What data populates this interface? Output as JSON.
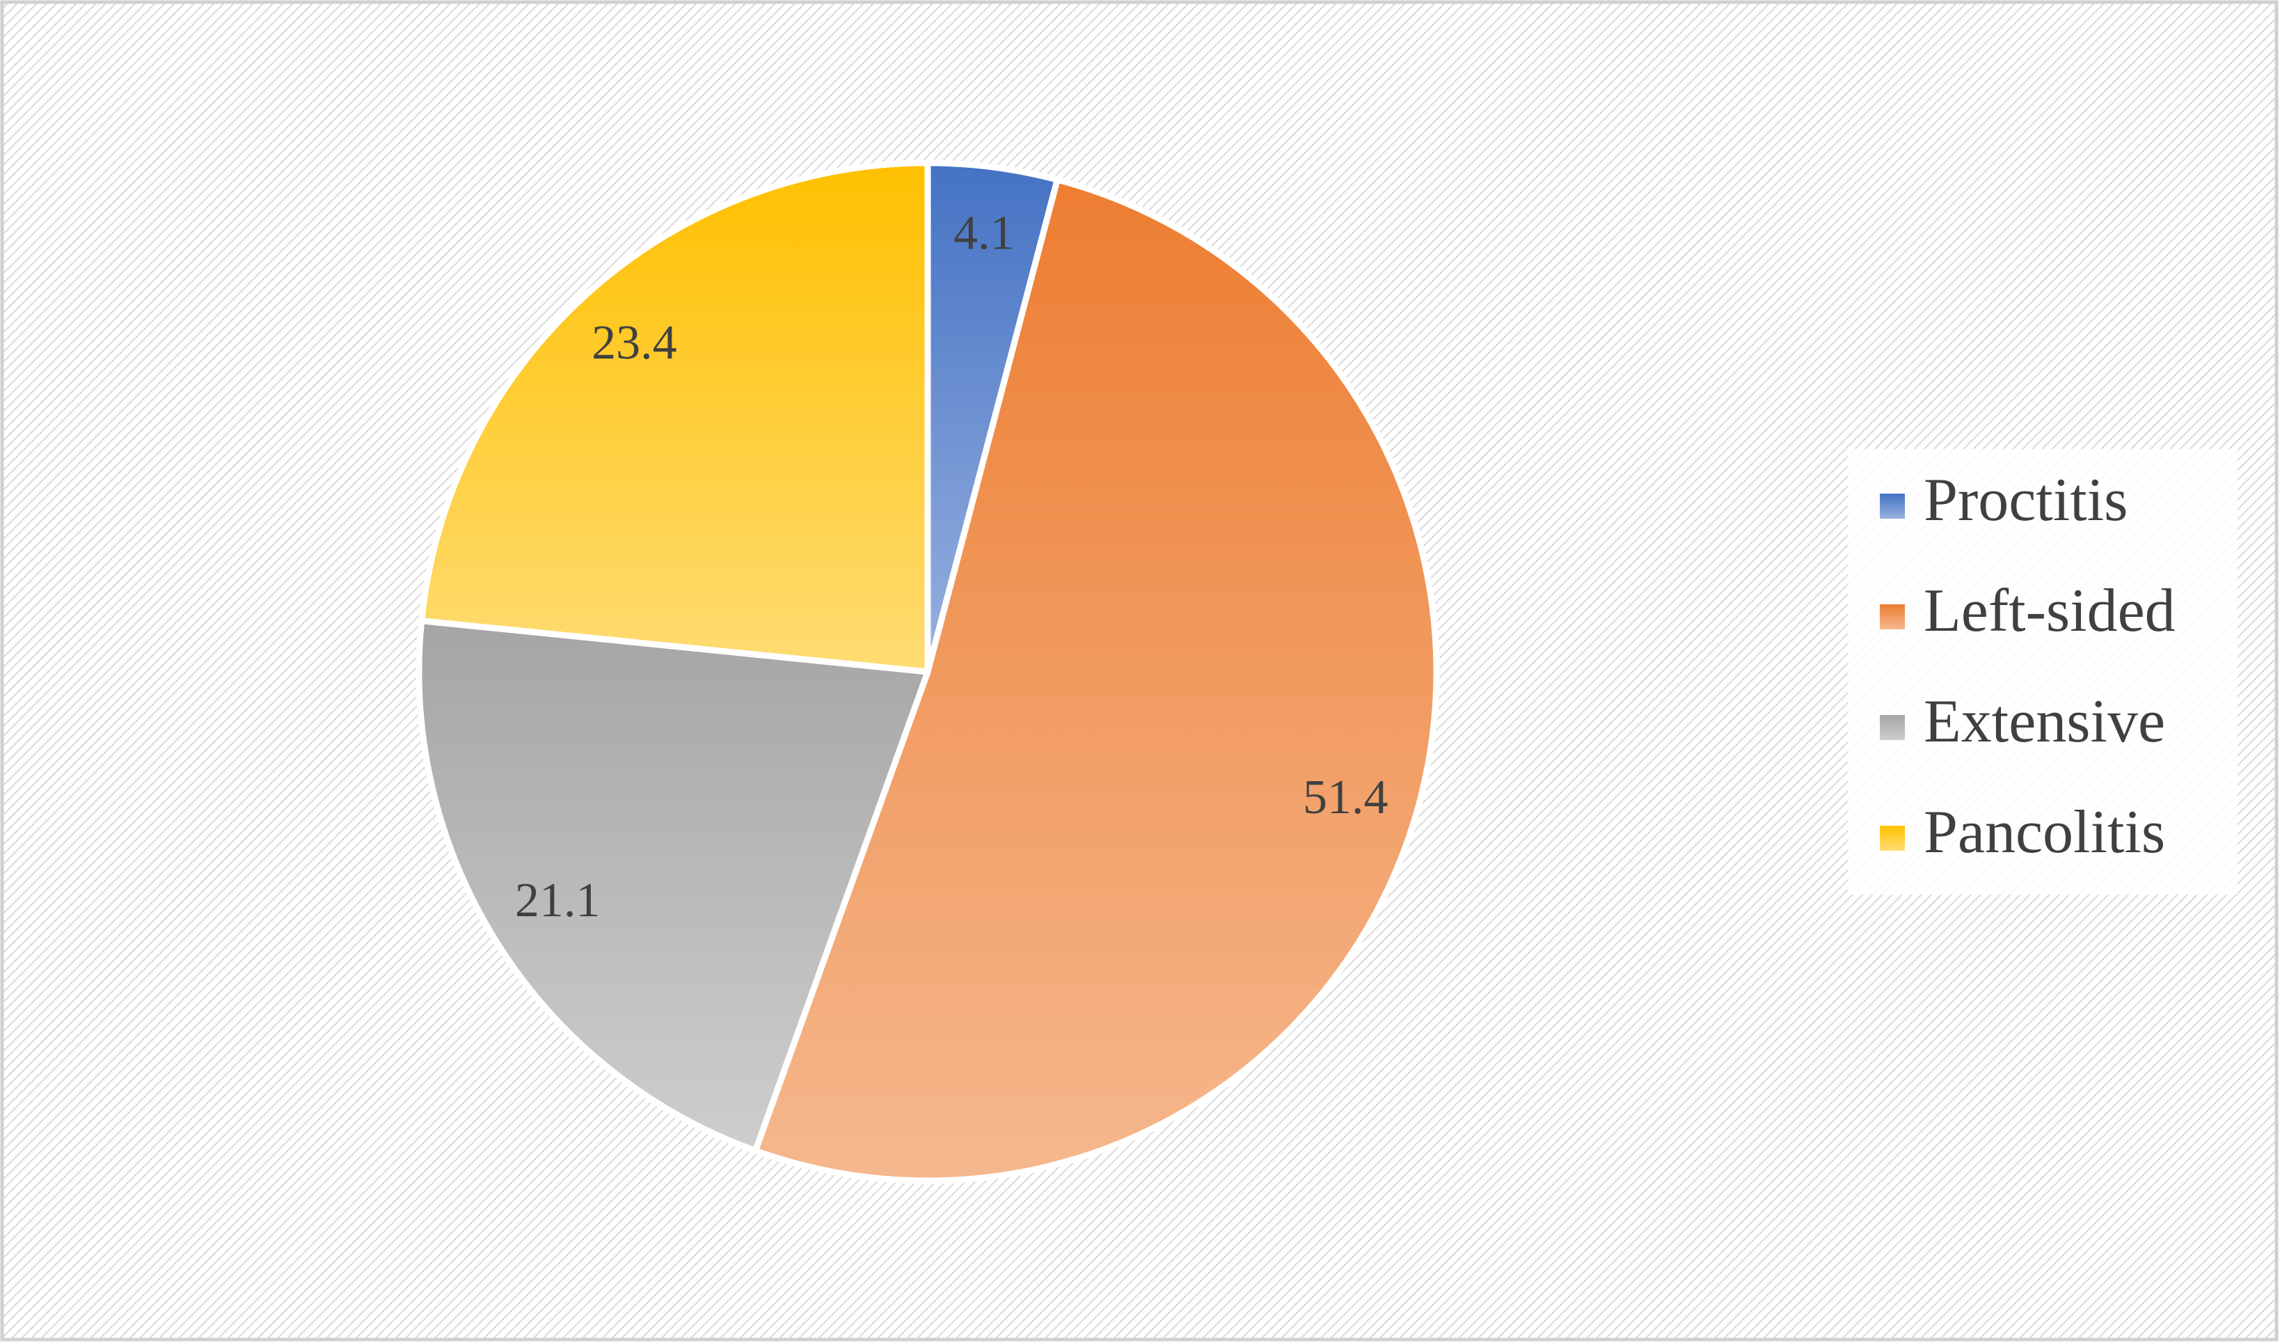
{
  "chart_data": {
    "type": "pie",
    "categories": [
      "Proctitis",
      "Left-sided",
      "Extensive",
      "Pancolitis"
    ],
    "values": [
      4.1,
      51.4,
      21.1,
      23.4
    ],
    "colors": [
      "#4472c4",
      "#ed7d31",
      "#a5a5a5",
      "#ffc000"
    ],
    "legend": "right"
  }
}
